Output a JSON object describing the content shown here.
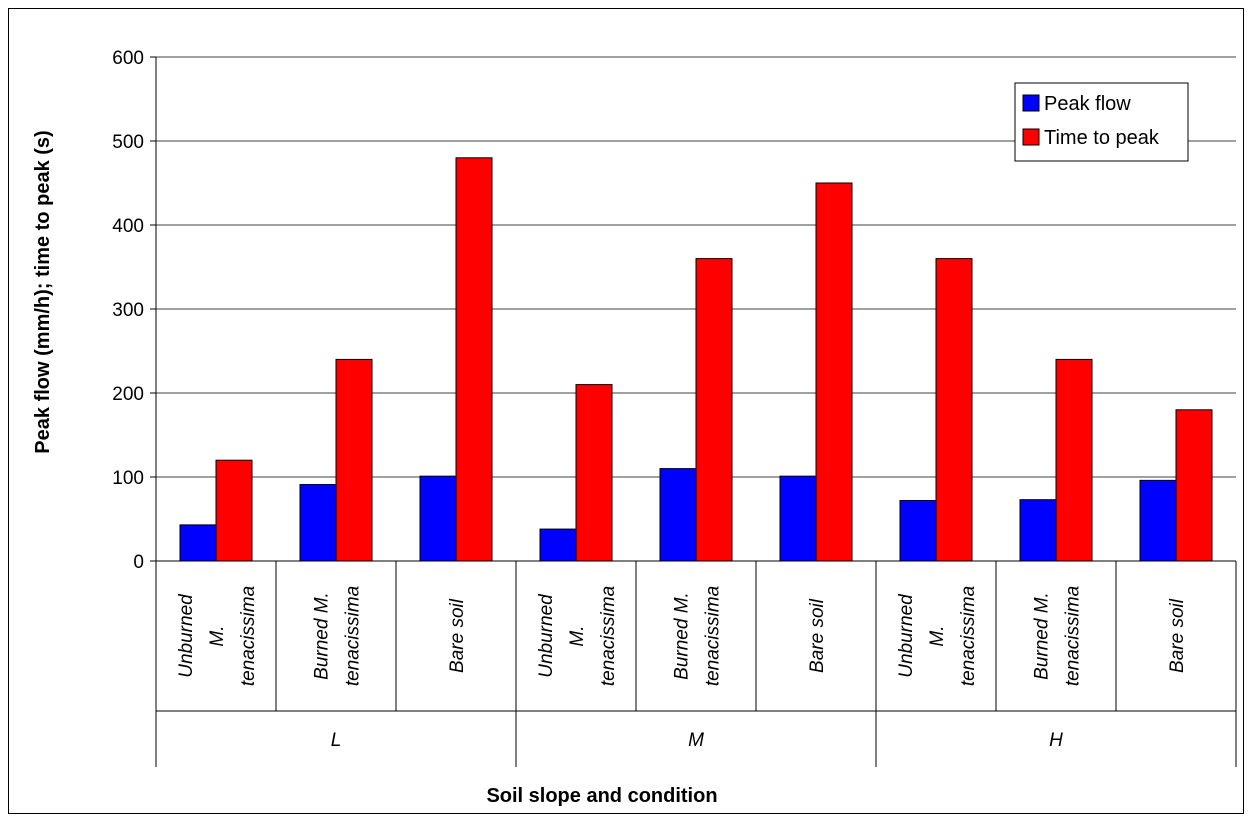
{
  "chart_data": {
    "type": "bar",
    "title": "",
    "xlabel": "Soil slope and condition",
    "ylabel": "Peak flow (mm/h); time to peak (s)",
    "ylim": [
      0,
      600
    ],
    "yticks": [
      0,
      100,
      200,
      300,
      400,
      500,
      600
    ],
    "grid": true,
    "legend_position": "top-right",
    "categories": [
      [
        "Unburned",
        "M.",
        "tenacissima"
      ],
      [
        "Burned M.",
        "tenacissima"
      ],
      [
        "Bare soil"
      ],
      [
        "Unburned",
        "M.",
        "tenacissima"
      ],
      [
        "Burned M.",
        "tenacissima"
      ],
      [
        "Bare soil"
      ],
      [
        "Unburned",
        "M.",
        "tenacissima"
      ],
      [
        "Burned M.",
        "tenacissima"
      ],
      [
        "Bare soil"
      ]
    ],
    "groups": [
      {
        "label": "L",
        "count": 3
      },
      {
        "label": "M",
        "count": 3
      },
      {
        "label": "H",
        "count": 3
      }
    ],
    "series": [
      {
        "name": "Peak flow",
        "color": "#0000ff",
        "values": [
          43,
          91,
          101,
          38,
          110,
          101,
          72,
          73,
          96
        ]
      },
      {
        "name": "Time to peak",
        "color": "#ff0000",
        "values": [
          120,
          240,
          480,
          210,
          360,
          450,
          360,
          240,
          180
        ]
      }
    ]
  }
}
